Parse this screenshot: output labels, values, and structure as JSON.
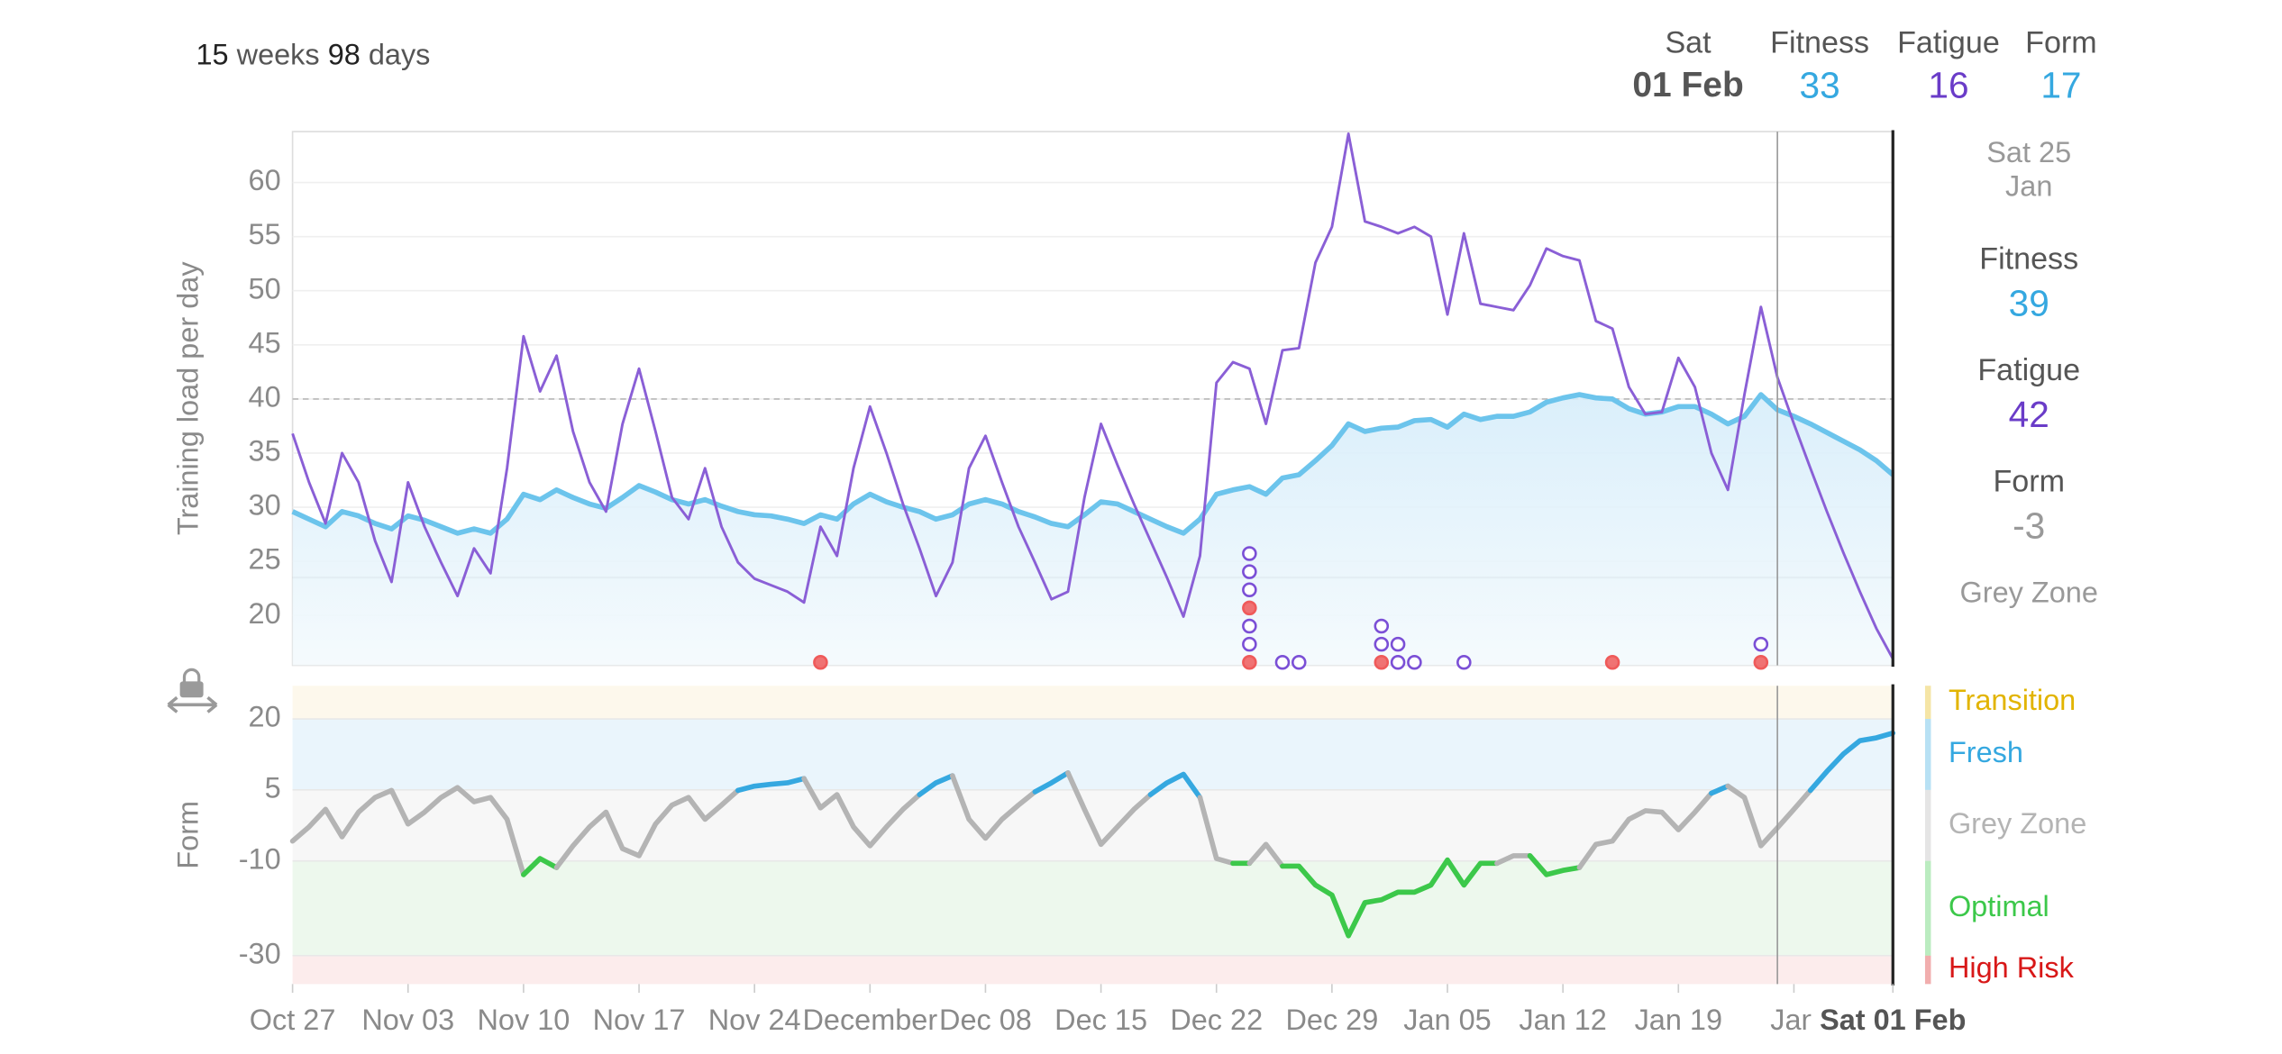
{
  "header": {
    "weeks": "15",
    "weeks_label": "weeks",
    "days": "98",
    "days_label": "days",
    "date_day": "Sat",
    "date": "01 Feb",
    "fitness_label": "Fitness",
    "fitness": "33",
    "fatigue_label": "Fatigue",
    "fatigue": "16",
    "form_label": "Form",
    "form": "17"
  },
  "panel": {
    "date": "Sat 25 Jan",
    "fitness_label": "Fitness",
    "fitness": "39",
    "fatigue_label": "Fatigue",
    "fatigue": "42",
    "form_label": "Form",
    "form": "-3",
    "zone": "Grey Zone"
  },
  "chart_data": [
    {
      "type": "line",
      "ylabel": "Training load per day",
      "ylim": [
        15.4,
        64.7
      ],
      "yticks": [
        20,
        25,
        30,
        35,
        40,
        45,
        50,
        55,
        60
      ],
      "grid": true,
      "cursor": "Jan 25",
      "reference_lines": [
        {
          "value": 40,
          "style": "dashed"
        },
        {
          "value": 23.5,
          "style": "solid"
        }
      ],
      "x": [
        "Oct 27",
        "Oct 28",
        "Oct 29",
        "Oct 30",
        "Oct 31",
        "Nov 01",
        "Nov 02",
        "Nov 03",
        "Nov 04",
        "Nov 05",
        "Nov 06",
        "Nov 07",
        "Nov 08",
        "Nov 09",
        "Nov 10",
        "Nov 11",
        "Nov 12",
        "Nov 13",
        "Nov 14",
        "Nov 15",
        "Nov 16",
        "Nov 17",
        "Nov 18",
        "Nov 19",
        "Nov 20",
        "Nov 21",
        "Nov 22",
        "Nov 23",
        "Nov 24",
        "Nov 25",
        "Nov 26",
        "Nov 27",
        "Nov 28",
        "Nov 29",
        "Nov 30",
        "Dec 01",
        "Dec 02",
        "Dec 03",
        "Dec 04",
        "Dec 05",
        "Dec 06",
        "Dec 07",
        "Dec 08",
        "Dec 09",
        "Dec 10",
        "Dec 11",
        "Dec 12",
        "Dec 13",
        "Dec 14",
        "Dec 15",
        "Dec 16",
        "Dec 17",
        "Dec 18",
        "Dec 19",
        "Dec 20",
        "Dec 21",
        "Dec 22",
        "Dec 23",
        "Dec 24",
        "Dec 25",
        "Dec 26",
        "Dec 27",
        "Dec 28",
        "Dec 29",
        "Dec 30",
        "Dec 31",
        "Jan 01",
        "Jan 02",
        "Jan 03",
        "Jan 04",
        "Jan 05",
        "Jan 06",
        "Jan 07",
        "Jan 08",
        "Jan 09",
        "Jan 10",
        "Jan 11",
        "Jan 12",
        "Jan 13",
        "Jan 14",
        "Jan 15",
        "Jan 16",
        "Jan 17",
        "Jan 18",
        "Jan 19",
        "Jan 20",
        "Jan 21",
        "Jan 22",
        "Jan 23",
        "Jan 24",
        "Jan 25",
        "Jan 26",
        "Jan 27",
        "Jan 28",
        "Jan 29",
        "Jan 30",
        "Jan 31",
        "Feb 01"
      ],
      "series": [
        {
          "name": "Fitness",
          "color": "#6cc4ec",
          "area": true,
          "values": [
            29.6,
            28.9,
            28.2,
            29.6,
            29.2,
            28.5,
            28,
            29.2,
            28.8,
            28.2,
            27.6,
            28,
            27.6,
            28.9,
            31.2,
            30.7,
            31.6,
            30.9,
            30.3,
            29.9,
            30.9,
            32,
            31.4,
            30.7,
            30.3,
            30.7,
            30.1,
            29.6,
            29.3,
            29.2,
            28.9,
            28.5,
            29.3,
            28.9,
            30.3,
            31.2,
            30.5,
            30,
            29.6,
            28.9,
            29.3,
            30.3,
            30.7,
            30.3,
            29.6,
            29.1,
            28.5,
            28.2,
            29.3,
            30.5,
            30.3,
            29.6,
            28.9,
            28.2,
            27.6,
            28.9,
            31.2,
            31.6,
            31.9,
            31.2,
            32.7,
            33,
            34.3,
            35.7,
            37.7,
            37,
            37.3,
            37.4,
            38,
            38.1,
            37.4,
            38.6,
            38.1,
            38.4,
            38.4,
            38.8,
            39.7,
            40.1,
            40.4,
            40.1,
            40,
            39.1,
            38.6,
            38.8,
            39.3,
            39.3,
            38.6,
            37.7,
            38.4,
            40.4,
            39,
            38.4,
            37.7,
            36.9,
            36.1,
            35.3,
            34.3,
            33
          ]
        },
        {
          "name": "Fatigue",
          "color": "#8a5fd6",
          "values": [
            36.8,
            32.3,
            28.5,
            35,
            32.3,
            26.9,
            23.1,
            32.3,
            28.2,
            24.9,
            21.8,
            26.2,
            23.9,
            33.6,
            45.8,
            40.7,
            44,
            37,
            32.3,
            29.6,
            37.7,
            42.8,
            37,
            30.9,
            28.9,
            33.6,
            28.2,
            24.9,
            23.4,
            22.8,
            22.2,
            21.2,
            28.2,
            25.5,
            33.6,
            39.3,
            35,
            30.3,
            26.2,
            21.8,
            24.9,
            33.6,
            36.6,
            32.3,
            28.2,
            24.9,
            21.5,
            22.2,
            30.9,
            37.7,
            33.9,
            30.3,
            26.9,
            23.5,
            19.9,
            25.5,
            41.5,
            43.4,
            42.8,
            37.7,
            44.5,
            44.7,
            52.6,
            55.9,
            64.5,
            56.4,
            55.9,
            55.3,
            55.9,
            55,
            47.8,
            55.3,
            48.8,
            48.5,
            48.2,
            50.5,
            53.9,
            53.2,
            52.8,
            47.2,
            46.5,
            41.1,
            38.6,
            38.8,
            43.8,
            41.1,
            35,
            31.6,
            40.4,
            48.5,
            42,
            37.7,
            33.6,
            29.6,
            25.8,
            22.2,
            18.8,
            16
          ]
        }
      ],
      "activities": [
        {
          "x": "Nov 28",
          "markers": [
            {
              "color": "#ef5a5a",
              "filled": true
            }
          ]
        },
        {
          "x": "Dec 24",
          "markers": [
            {
              "color": "#ef5a5a",
              "filled": true
            },
            {
              "color": "#7b4fd6",
              "filled": false
            },
            {
              "color": "#7b4fd6",
              "filled": false
            },
            {
              "color": "#ef5a5a",
              "filled": true
            },
            {
              "color": "#7b4fd6",
              "filled": false
            },
            {
              "color": "#7b4fd6",
              "filled": false
            },
            {
              "color": "#7b4fd6",
              "filled": false
            }
          ]
        },
        {
          "x": "Dec 26",
          "markers": [
            {
              "color": "#7b4fd6",
              "filled": false
            }
          ]
        },
        {
          "x": "Dec 27",
          "markers": [
            {
              "color": "#7b4fd6",
              "filled": false
            }
          ]
        },
        {
          "x": "Jan 01",
          "markers": [
            {
              "color": "#ef5a5a",
              "filled": true
            },
            {
              "color": "#7b4fd6",
              "filled": false
            },
            {
              "color": "#7b4fd6",
              "filled": false
            }
          ]
        },
        {
          "x": "Jan 02",
          "markers": [
            {
              "color": "#7b4fd6",
              "filled": false
            },
            {
              "color": "#7b4fd6",
              "filled": false
            }
          ]
        },
        {
          "x": "Jan 03",
          "markers": [
            {
              "color": "#7b4fd6",
              "filled": false
            }
          ]
        },
        {
          "x": "Jan 06",
          "markers": [
            {
              "color": "#7b4fd6",
              "filled": false
            }
          ]
        },
        {
          "x": "Jan 15",
          "markers": [
            {
              "color": "#ef5a5a",
              "filled": true
            }
          ]
        },
        {
          "x": "Jan 24",
          "markers": [
            {
              "color": "#ef5a5a",
              "filled": true
            },
            {
              "color": "#7b4fd6",
              "filled": false
            }
          ]
        }
      ]
    },
    {
      "type": "zoned_line",
      "ylabel": "Form",
      "ylim": [
        -36,
        27
      ],
      "yticks": [
        20,
        5,
        -10,
        -30
      ],
      "cursor": "Jan 25",
      "zones": [
        {
          "name": "Transition",
          "min": 20,
          "color": "#e2b400",
          "fill": "#fdf8ec"
        },
        {
          "name": "Fresh",
          "min": 5,
          "color": "#35a8e0",
          "fill": "#eaf5fc"
        },
        {
          "name": "Grey Zone",
          "min": -10,
          "color": "#b4b4b4",
          "fill": "#f7f7f7"
        },
        {
          "name": "Optimal",
          "min": -30,
          "color": "#3cc84a",
          "fill": "#edf8ed"
        },
        {
          "name": "High Risk",
          "color": "#d81818",
          "fill": "#fcecec"
        }
      ],
      "x": [
        "Oct 27",
        "Oct 28",
        "Oct 29",
        "Oct 30",
        "Oct 31",
        "Nov 01",
        "Nov 02",
        "Nov 03",
        "Nov 04",
        "Nov 05",
        "Nov 06",
        "Nov 07",
        "Nov 08",
        "Nov 09",
        "Nov 10",
        "Nov 11",
        "Nov 12",
        "Nov 13",
        "Nov 14",
        "Nov 15",
        "Nov 16",
        "Nov 17",
        "Nov 18",
        "Nov 19",
        "Nov 20",
        "Nov 21",
        "Nov 22",
        "Nov 23",
        "Nov 24",
        "Nov 25",
        "Nov 26",
        "Nov 27",
        "Nov 28",
        "Nov 29",
        "Nov 30",
        "Dec 01",
        "Dec 02",
        "Dec 03",
        "Dec 04",
        "Dec 05",
        "Dec 06",
        "Dec 07",
        "Dec 08",
        "Dec 09",
        "Dec 10",
        "Dec 11",
        "Dec 12",
        "Dec 13",
        "Dec 14",
        "Dec 15",
        "Dec 16",
        "Dec 17",
        "Dec 18",
        "Dec 19",
        "Dec 20",
        "Dec 21",
        "Dec 22",
        "Dec 23",
        "Dec 24",
        "Dec 25",
        "Dec 26",
        "Dec 27",
        "Dec 28",
        "Dec 29",
        "Dec 30",
        "Dec 31",
        "Jan 01",
        "Jan 02",
        "Jan 03",
        "Jan 04",
        "Jan 05",
        "Jan 06",
        "Jan 07",
        "Jan 08",
        "Jan 09",
        "Jan 10",
        "Jan 11",
        "Jan 12",
        "Jan 13",
        "Jan 14",
        "Jan 15",
        "Jan 16",
        "Jan 17",
        "Jan 18",
        "Jan 19",
        "Jan 20",
        "Jan 21",
        "Jan 22",
        "Jan 23",
        "Jan 24",
        "Jan 25",
        "Jan 26",
        "Jan 27",
        "Jan 28",
        "Jan 29",
        "Jan 30",
        "Jan 31",
        "Feb 01"
      ],
      "xticks": [
        {
          "value": "Oct 27",
          "label": "Oct 27"
        },
        {
          "value": "Nov 03",
          "label": "Nov 03"
        },
        {
          "value": "Nov 10",
          "label": "Nov 10"
        },
        {
          "value": "Nov 17",
          "label": "Nov 17"
        },
        {
          "value": "Nov 24",
          "label": "Nov 24"
        },
        {
          "value": "Dec 01",
          "label": "December"
        },
        {
          "value": "Dec 08",
          "label": "Dec 08"
        },
        {
          "value": "Dec 15",
          "label": "Dec 15"
        },
        {
          "value": "Dec 22",
          "label": "Dec 22"
        },
        {
          "value": "Dec 29",
          "label": "Dec 29"
        },
        {
          "value": "Jan 05",
          "label": "Jan 05"
        },
        {
          "value": "Jan 12",
          "label": "Jan 12"
        },
        {
          "value": "Jan 19",
          "label": "Jan 19"
        },
        {
          "value": "Jan 26",
          "label": "Jan"
        },
        {
          "value": "Feb 01",
          "label": "Sat 01 Feb"
        }
      ],
      "series": [
        {
          "name": "Form",
          "values": [
            -5.8,
            -2.8,
            0.9,
            -4.9,
            0.3,
            3.4,
            4.9,
            -2.2,
            0.3,
            3.4,
            5.5,
            2.5,
            3.4,
            -1.2,
            -12.9,
            -9.5,
            -11.4,
            -6.8,
            -2.8,
            0.3,
            -7.4,
            -8.9,
            -2.2,
            1.8,
            3.4,
            -1.2,
            1.8,
            4.9,
            5.8,
            6.2,
            6.5,
            7.4,
            1.2,
            4,
            -2.8,
            -6.8,
            -2.8,
            0.9,
            4,
            6.5,
            8,
            -1.2,
            -5.2,
            -1.2,
            1.8,
            4.6,
            6.5,
            8.6,
            0.9,
            -6.5,
            -2.8,
            0.9,
            4,
            6.5,
            8.3,
            3.4,
            -9.5,
            -10.5,
            -10.5,
            -6.5,
            -11.1,
            -11.1,
            -15.1,
            -17.2,
            -25.8,
            -18.8,
            -18.2,
            -16.6,
            -16.6,
            -15.1,
            -9.8,
            -15.1,
            -10.5,
            -10.5,
            -8.9,
            -8.9,
            -12.9,
            -12,
            -11.4,
            -6.5,
            -5.8,
            -1.2,
            0.6,
            0.3,
            -3.4,
            0.3,
            4.3,
            5.8,
            3.4,
            -6.8,
            -3,
            0.9,
            4.9,
            8.9,
            12.6,
            15.4,
            16,
            17
          ]
        }
      ]
    }
  ]
}
